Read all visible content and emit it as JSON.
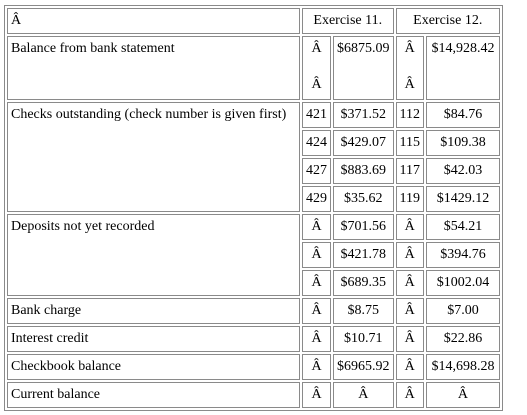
{
  "header": {
    "corner": "Â",
    "ex11": "Exercise 11.",
    "ex12": "Exercise 12."
  },
  "rows": {
    "balance": {
      "label": "Balance from bank statement",
      "a11": "Â",
      "a11b": "Â",
      "v11": "$6875.09",
      "a12": "Â",
      "a12b": "Â",
      "v12": "$14,928.42"
    },
    "checks": {
      "label": "Checks outstanding (check number is given first)",
      "items": [
        {
          "n11": "421",
          "v11": "$371.52",
          "n12": "112",
          "v12": "$84.76"
        },
        {
          "n11": "424",
          "v11": "$429.07",
          "n12": "115",
          "v12": "$109.38"
        },
        {
          "n11": "427",
          "v11": "$883.69",
          "n12": "117",
          "v12": "$42.03"
        },
        {
          "n11": "429",
          "v11": "$35.62",
          "n12": "119",
          "v12": "$1429.12"
        }
      ]
    },
    "deposits": {
      "label": "Deposits not yet recorded",
      "items": [
        {
          "n11": "Â",
          "v11": "$701.56",
          "n12": "Â",
          "v12": "$54.21"
        },
        {
          "n11": "Â",
          "v11": "$421.78",
          "n12": "Â",
          "v12": "$394.76"
        },
        {
          "n11": "Â",
          "v11": "$689.35",
          "n12": "Â",
          "v12": "$1002.04"
        }
      ]
    },
    "bank_charge": {
      "label": "Bank charge",
      "n11": "Â",
      "v11": "$8.75",
      "n12": "Â",
      "v12": "$7.00"
    },
    "interest": {
      "label": "Interest credit",
      "n11": "Â",
      "v11": "$10.71",
      "n12": "Â",
      "v12": "$22.86"
    },
    "checkbook": {
      "label": "Checkbook balance",
      "n11": "Â",
      "v11": "$6965.92",
      "n12": "Â",
      "v12": "$14,698.28"
    },
    "current": {
      "label": "Current balance",
      "n11": "Â",
      "v11": "Â",
      "n12": "Â",
      "v12": "Â"
    }
  }
}
